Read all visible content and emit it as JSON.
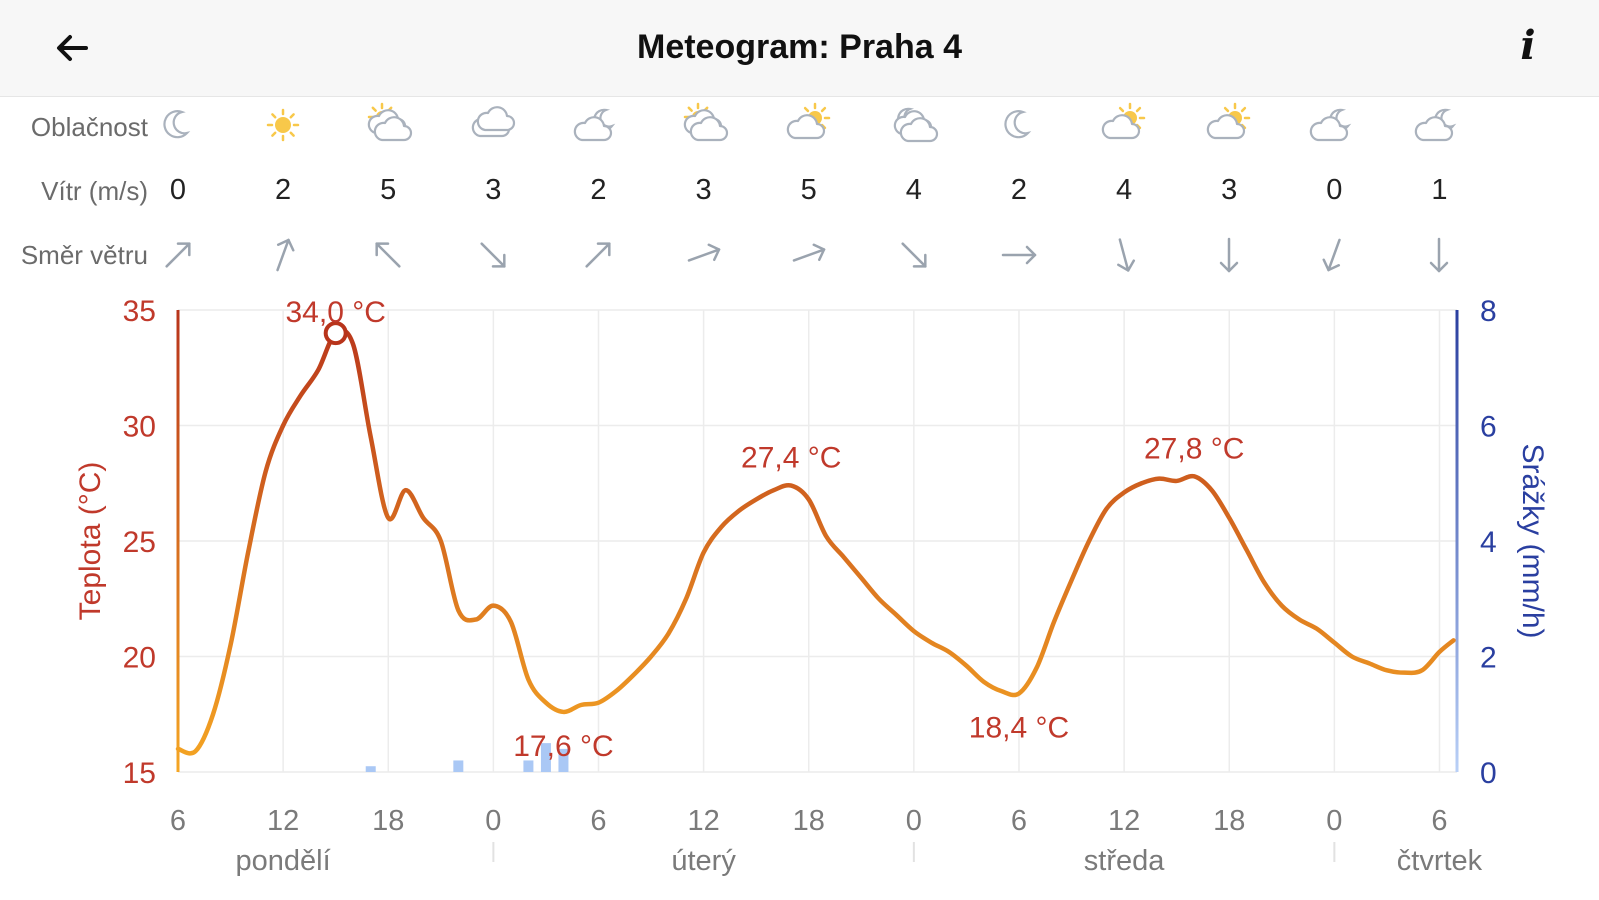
{
  "header": {
    "title": "Meteogram: Praha 4",
    "info": "i"
  },
  "rows": {
    "cloud_label": "Oblačnost",
    "wind_label": "Vítr (m/s)",
    "dir_label": "Směr větru"
  },
  "forecast": [
    {
      "icon": "moon",
      "wind": "0",
      "dir": 45
    },
    {
      "icon": "sun",
      "wind": "2",
      "dir": 20
    },
    {
      "icon": "sun-behind-clouds",
      "wind": "5",
      "dir": -45
    },
    {
      "icon": "cloud",
      "wind": "3",
      "dir": 135
    },
    {
      "icon": "moon-behind-cloud",
      "wind": "2",
      "dir": 45
    },
    {
      "icon": "sun-behind-clouds",
      "wind": "3",
      "dir": 70
    },
    {
      "icon": "sun-behind-cloud",
      "wind": "5",
      "dir": 70
    },
    {
      "icon": "moon-behind-clouds",
      "wind": "4",
      "dir": 135
    },
    {
      "icon": "moon",
      "wind": "2",
      "dir": 90
    },
    {
      "icon": "sun-behind-cloud",
      "wind": "4",
      "dir": 165
    },
    {
      "icon": "sun-behind-cloud",
      "wind": "3",
      "dir": 180
    },
    {
      "icon": "moon-behind-cloud",
      "wind": "0",
      "dir": 200
    },
    {
      "icon": "moon-behind-cloud",
      "wind": "1",
      "dir": 180
    }
  ],
  "chart_data": {
    "type": "line",
    "x_unit": "hours from Monday 06:00",
    "xlim": [
      0,
      73
    ],
    "x_ticks": [
      {
        "hour": 0,
        "label": "6"
      },
      {
        "hour": 6,
        "label": "12"
      },
      {
        "hour": 12,
        "label": "18"
      },
      {
        "hour": 18,
        "label": "0"
      },
      {
        "hour": 24,
        "label": "6"
      },
      {
        "hour": 30,
        "label": "12"
      },
      {
        "hour": 36,
        "label": "18"
      },
      {
        "hour": 42,
        "label": "0"
      },
      {
        "hour": 48,
        "label": "6"
      },
      {
        "hour": 54,
        "label": "12"
      },
      {
        "hour": 60,
        "label": "18"
      },
      {
        "hour": 66,
        "label": "0"
      },
      {
        "hour": 72,
        "label": "6"
      }
    ],
    "days": [
      {
        "hour": 6,
        "label": "pondělí"
      },
      {
        "hour": 30,
        "label": "úterý"
      },
      {
        "hour": 54,
        "label": "středa"
      },
      {
        "hour": 72,
        "label": "čtvrtek"
      }
    ],
    "day_separators": [
      18,
      42,
      66
    ],
    "y_left": {
      "label": "Teplota (°C)",
      "ylim": [
        15,
        35
      ],
      "ticks": [
        "15",
        "20",
        "25",
        "30",
        "35"
      ],
      "color": "#c0392b"
    },
    "y_right": {
      "label": "Srážky (mm/h)",
      "ylim": [
        0,
        8
      ],
      "ticks": [
        "0",
        "2",
        "4",
        "6",
        "8"
      ],
      "color": "#2a3fa0"
    },
    "temperature": [
      [
        0,
        16.0
      ],
      [
        1,
        15.9
      ],
      [
        2,
        17.5
      ],
      [
        3,
        20.5
      ],
      [
        4,
        24.5
      ],
      [
        5,
        28.0
      ],
      [
        6,
        30.0
      ],
      [
        7,
        31.3
      ],
      [
        8,
        32.4
      ],
      [
        9,
        34.0
      ],
      [
        10,
        33.5
      ],
      [
        11,
        29.5
      ],
      [
        12,
        26.0
      ],
      [
        13,
        27.2
      ],
      [
        14,
        26.0
      ],
      [
        15,
        25.0
      ],
      [
        16,
        22.0
      ],
      [
        17,
        21.6
      ],
      [
        18,
        22.2
      ],
      [
        19,
        21.5
      ],
      [
        20,
        19.0
      ],
      [
        21,
        18.0
      ],
      [
        22,
        17.6
      ],
      [
        23,
        17.9
      ],
      [
        24,
        18.0
      ],
      [
        25,
        18.5
      ],
      [
        26,
        19.2
      ],
      [
        27,
        20.0
      ],
      [
        28,
        21.0
      ],
      [
        29,
        22.5
      ],
      [
        30,
        24.5
      ],
      [
        31,
        25.6
      ],
      [
        32,
        26.3
      ],
      [
        33,
        26.8
      ],
      [
        34,
        27.2
      ],
      [
        35,
        27.4
      ],
      [
        36,
        26.8
      ],
      [
        37,
        25.2
      ],
      [
        38,
        24.3
      ],
      [
        39,
        23.4
      ],
      [
        40,
        22.5
      ],
      [
        41,
        21.8
      ],
      [
        42,
        21.1
      ],
      [
        43,
        20.6
      ],
      [
        44,
        20.2
      ],
      [
        45,
        19.6
      ],
      [
        46,
        18.9
      ],
      [
        47,
        18.5
      ],
      [
        48,
        18.4
      ],
      [
        49,
        19.5
      ],
      [
        50,
        21.5
      ],
      [
        51,
        23.3
      ],
      [
        52,
        25.0
      ],
      [
        53,
        26.4
      ],
      [
        54,
        27.1
      ],
      [
        55,
        27.5
      ],
      [
        56,
        27.7
      ],
      [
        57,
        27.6
      ],
      [
        58,
        27.8
      ],
      [
        59,
        27.2
      ],
      [
        60,
        26.0
      ],
      [
        61,
        24.6
      ],
      [
        62,
        23.2
      ],
      [
        63,
        22.2
      ],
      [
        64,
        21.6
      ],
      [
        65,
        21.2
      ],
      [
        66,
        20.6
      ],
      [
        67,
        20.0
      ],
      [
        68,
        19.7
      ],
      [
        69,
        19.4
      ],
      [
        70,
        19.3
      ],
      [
        71,
        19.4
      ],
      [
        72,
        20.2
      ],
      [
        72.8,
        20.7
      ]
    ],
    "extremes": [
      {
        "hour": 9,
        "value": 34.0,
        "label": "34,0 °C",
        "pos": "above",
        "marker": true
      },
      {
        "hour": 22,
        "value": 17.6,
        "label": "17,6 °C",
        "pos": "below",
        "marker": false
      },
      {
        "hour": 35,
        "value": 27.4,
        "label": "27,4 °C",
        "pos": "above",
        "marker": false
      },
      {
        "hour": 48,
        "value": 18.4,
        "label": "18,4 °C",
        "pos": "below",
        "marker": false
      },
      {
        "hour": 58,
        "value": 27.8,
        "label": "27,8 °C",
        "pos": "above",
        "marker": false
      }
    ],
    "precipitation": [
      {
        "hour": 11,
        "value": 0.1
      },
      {
        "hour": 16,
        "value": 0.2
      },
      {
        "hour": 20,
        "value": 0.2
      },
      {
        "hour": 21,
        "value": 0.5
      },
      {
        "hour": 22,
        "value": 0.4
      }
    ],
    "grid": true,
    "colors": {
      "temp_cold": "#f5a623",
      "temp_hot": "#b8341b",
      "precip": "#aac8f5",
      "grid": "#ececec"
    }
  }
}
